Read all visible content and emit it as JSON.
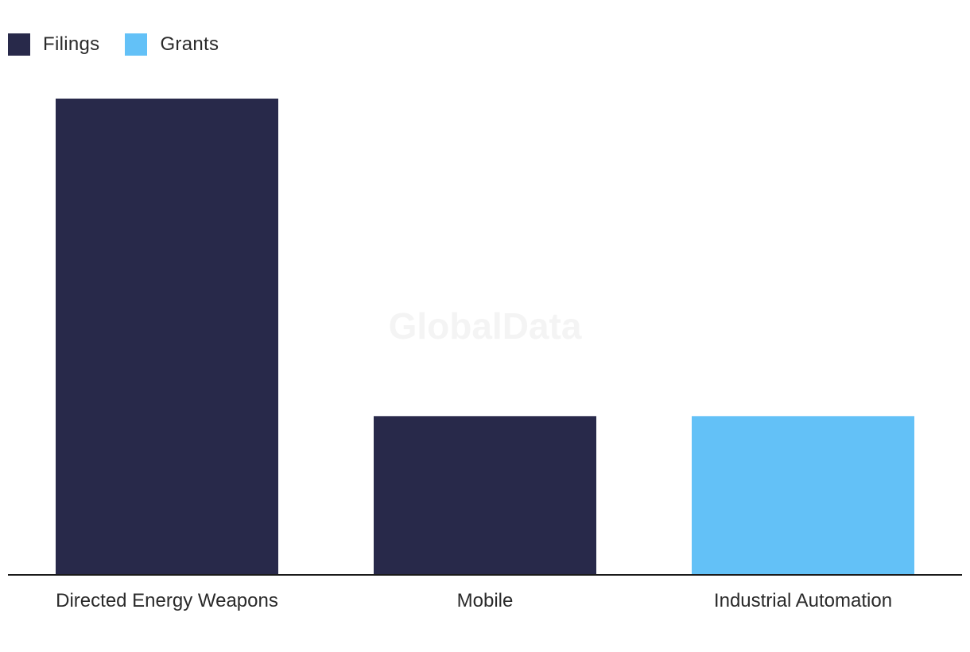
{
  "watermark": "GlobalData",
  "legend": [
    {
      "name": "Filings",
      "color": "#28294a"
    },
    {
      "name": "Grants",
      "color": "#63c1f7"
    }
  ],
  "chart_data": {
    "type": "bar",
    "categories": [
      "Directed Energy Weapons",
      "Mobile",
      "Industrial Automation"
    ],
    "series": [
      {
        "name": "Filings",
        "color": "#28294a",
        "values": [
          3,
          1,
          0
        ]
      },
      {
        "name": "Grants",
        "color": "#63c1f7",
        "values": [
          0,
          0,
          1
        ]
      }
    ],
    "ylim": [
      0,
      3
    ],
    "grid": false,
    "legend_position": "top-left",
    "xlabel": "",
    "ylabel": "",
    "title": ""
  }
}
